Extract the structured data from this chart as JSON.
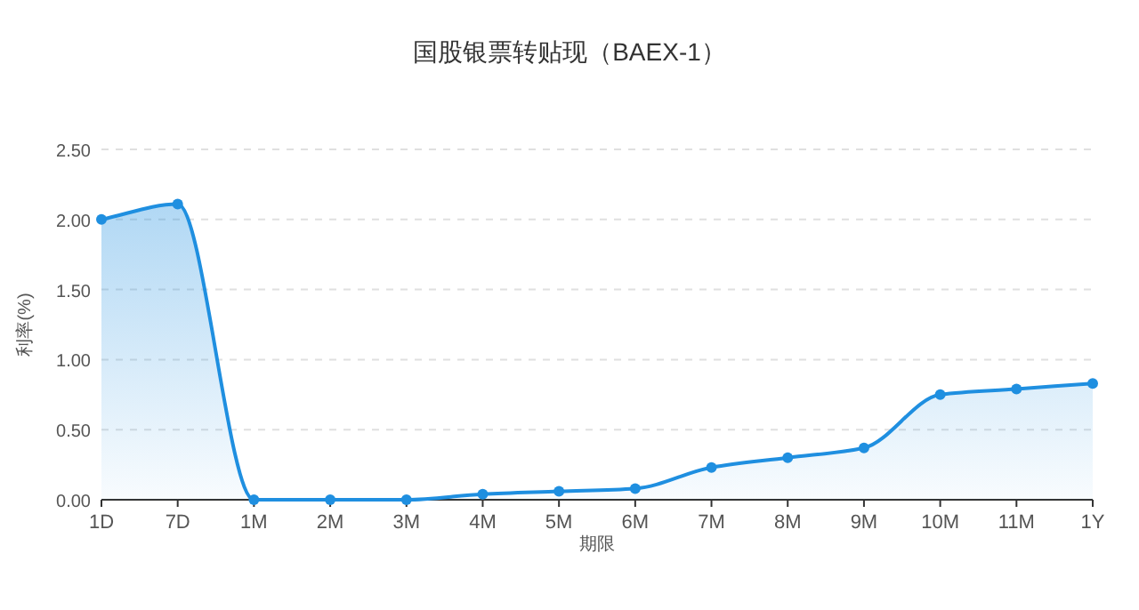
{
  "chart_data": {
    "type": "area",
    "title": "国股银票转贴现（BAEX-1）",
    "xlabel": "期限",
    "ylabel": "利率(%)",
    "categories": [
      "1D",
      "7D",
      "1M",
      "2M",
      "3M",
      "4M",
      "5M",
      "6M",
      "7M",
      "8M",
      "9M",
      "10M",
      "11M",
      "1Y"
    ],
    "series": [
      {
        "color": "#1f8fe0",
        "values": [
          2.0,
          2.11,
          0.0,
          0.0,
          0.0,
          0.04,
          0.06,
          0.08,
          0.23,
          0.3,
          0.37,
          0.75,
          0.79,
          0.83
        ]
      }
    ],
    "ylim": [
      0,
      2.5
    ],
    "yticks": [
      {
        "value": 0,
        "label": "0.00"
      },
      {
        "value": 0.5,
        "label": "0.50"
      },
      {
        "value": 1,
        "label": "1.00"
      },
      {
        "value": 1.5,
        "label": "1.50"
      },
      {
        "value": 2,
        "label": "2.00"
      },
      {
        "value": 2.5,
        "label": "2.50"
      }
    ],
    "grid": "y",
    "marker": "circle",
    "line_style": "solid"
  }
}
